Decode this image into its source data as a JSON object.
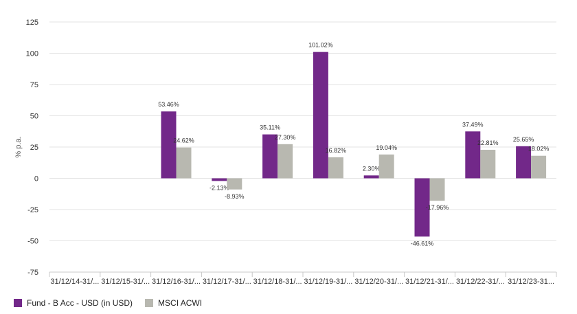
{
  "colors": {
    "fund": "#722889",
    "index": "#b8b8b0",
    "grid": "#e3e3e3",
    "axis": "#c8c8c8"
  },
  "chart_data": {
    "type": "bar",
    "ylabel": "% p.a.",
    "ylim": [
      -75,
      125
    ],
    "yticks": [
      -75,
      -50,
      -25,
      0,
      25,
      50,
      75,
      100,
      125
    ],
    "ytick_labels": [
      "-75",
      "-50",
      "-25",
      "0",
      "25",
      "50",
      "75",
      "100",
      "125"
    ],
    "categories": [
      "31/12/14-31/...",
      "31/12/15-31/...",
      "31/12/16-31/...",
      "31/12/17-31/...",
      "31/12/18-31/...",
      "31/12/19-31/...",
      "31/12/20-31/...",
      "31/12/21-31/...",
      "31/12/22-31/...",
      "31/12/23-31..."
    ],
    "grid": true,
    "legend_position": "bottom-left",
    "series": [
      {
        "name": "Fund - B Acc - USD (in USD)",
        "values": [
          null,
          null,
          53.46,
          -2.13,
          35.11,
          101.02,
          2.3,
          -46.61,
          37.49,
          25.65
        ],
        "labels": [
          "",
          "",
          "53.46%",
          "-2.13%",
          "35.11%",
          "101.02%",
          "2.30%",
          "-46.61%",
          "37.49%",
          "25.65%"
        ]
      },
      {
        "name": "MSCI ACWI",
        "values": [
          null,
          null,
          24.62,
          -8.93,
          27.3,
          16.82,
          19.04,
          -17.96,
          22.81,
          18.02
        ],
        "labels": [
          "",
          "",
          "24.62%",
          "-8.93%",
          "27.30%",
          "16.82%",
          "19.04%",
          "-17.96%",
          "22.81%",
          "18.02%"
        ]
      }
    ]
  }
}
